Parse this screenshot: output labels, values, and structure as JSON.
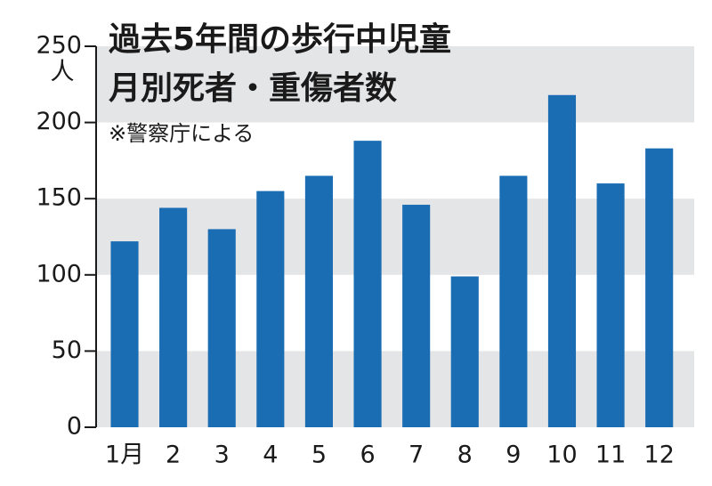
{
  "chart_data": {
    "type": "bar",
    "title": [
      "過去5年間の歩行中児童",
      "月別死者・重傷者数"
    ],
    "subtitle": "※警察庁による",
    "y_unit": "人",
    "categories": [
      "1月",
      "2",
      "3",
      "4",
      "5",
      "6",
      "7",
      "8",
      "9",
      "10",
      "11",
      "12"
    ],
    "values": [
      122,
      144,
      130,
      155,
      165,
      188,
      146,
      99,
      165,
      218,
      160,
      183
    ],
    "color": "#1a6db3",
    "ylim": [
      0,
      250
    ],
    "yticks": [
      0,
      50,
      100,
      150,
      200,
      250
    ],
    "grid": "bands",
    "band_color": "#e4e5e7"
  }
}
